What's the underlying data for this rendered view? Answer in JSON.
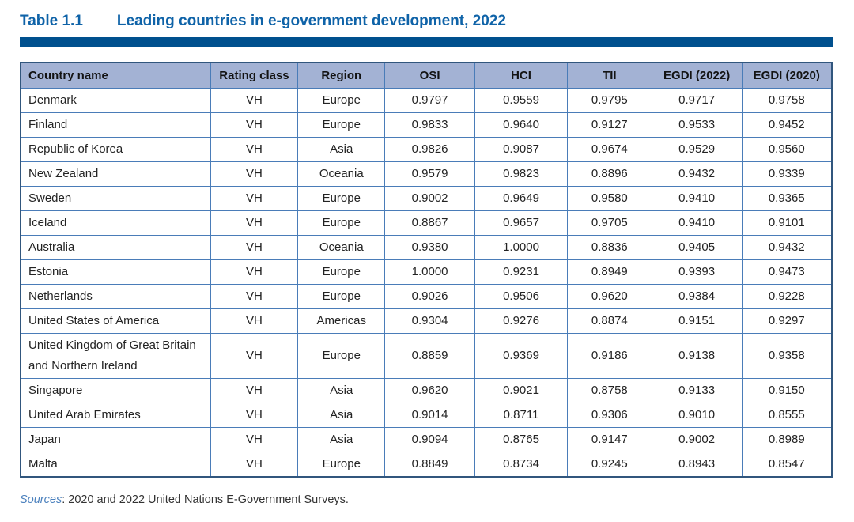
{
  "title": {
    "label": "Table 1.1",
    "text": "Leading countries in e-government development, 2022"
  },
  "table": {
    "columns": [
      "Country name",
      "Rating class",
      "Region",
      "OSI",
      "HCI",
      "TII",
      "EGDI (2022)",
      "EGDI (2020)"
    ],
    "column_keys": [
      "country",
      "rating",
      "region",
      "osi",
      "hci",
      "tii",
      "egdi2022",
      "egdi2020"
    ],
    "column_widths": [
      "23.4%",
      "10.8%",
      "10.7%",
      "11.1%",
      "11.4%",
      "10.4%",
      "11.1%",
      "11.1%"
    ],
    "rows": [
      {
        "country": "Denmark",
        "rating": "VH",
        "region": "Europe",
        "osi": "0.9797",
        "hci": "0.9559",
        "tii": "0.9795",
        "egdi2022": "0.9717",
        "egdi2020": "0.9758"
      },
      {
        "country": "Finland",
        "rating": "VH",
        "region": "Europe",
        "osi": "0.9833",
        "hci": "0.9640",
        "tii": "0.9127",
        "egdi2022": "0.9533",
        "egdi2020": "0.9452"
      },
      {
        "country": "Republic of Korea",
        "rating": "VH",
        "region": "Asia",
        "osi": "0.9826",
        "hci": "0.9087",
        "tii": "0.9674",
        "egdi2022": "0.9529",
        "egdi2020": "0.9560"
      },
      {
        "country": "New Zealand",
        "rating": "VH",
        "region": "Oceania",
        "osi": "0.9579",
        "hci": "0.9823",
        "tii": "0.8896",
        "egdi2022": "0.9432",
        "egdi2020": "0.9339"
      },
      {
        "country": "Sweden",
        "rating": "VH",
        "region": "Europe",
        "osi": "0.9002",
        "hci": "0.9649",
        "tii": "0.9580",
        "egdi2022": "0.9410",
        "egdi2020": "0.9365"
      },
      {
        "country": "Iceland",
        "rating": "VH",
        "region": "Europe",
        "osi": "0.8867",
        "hci": "0.9657",
        "tii": "0.9705",
        "egdi2022": "0.9410",
        "egdi2020": "0.9101"
      },
      {
        "country": "Australia",
        "rating": "VH",
        "region": "Oceania",
        "osi": "0.9380",
        "hci": "1.0000",
        "tii": "0.8836",
        "egdi2022": "0.9405",
        "egdi2020": "0.9432"
      },
      {
        "country": "Estonia",
        "rating": "VH",
        "region": "Europe",
        "osi": "1.0000",
        "hci": "0.9231",
        "tii": "0.8949",
        "egdi2022": "0.9393",
        "egdi2020": "0.9473"
      },
      {
        "country": "Netherlands",
        "rating": "VH",
        "region": "Europe",
        "osi": "0.9026",
        "hci": "0.9506",
        "tii": "0.9620",
        "egdi2022": "0.9384",
        "egdi2020": "0.9228"
      },
      {
        "country": "United States of America",
        "rating": "VH",
        "region": "Americas",
        "osi": "0.9304",
        "hci": "0.9276",
        "tii": "0.8874",
        "egdi2022": "0.9151",
        "egdi2020": "0.9297"
      },
      {
        "country": "United Kingdom of Great Britain and Northern Ireland",
        "rating": "VH",
        "region": "Europe",
        "osi": "0.8859",
        "hci": "0.9369",
        "tii": "0.9186",
        "egdi2022": "0.9138",
        "egdi2020": "0.9358"
      },
      {
        "country": "Singapore",
        "rating": "VH",
        "region": "Asia",
        "osi": "0.9620",
        "hci": "0.9021",
        "tii": "0.8758",
        "egdi2022": "0.9133",
        "egdi2020": "0.9150"
      },
      {
        "country": "United Arab Emirates",
        "rating": "VH",
        "region": "Asia",
        "osi": "0.9014",
        "hci": "0.8711",
        "tii": "0.9306",
        "egdi2022": "0.9010",
        "egdi2020": "0.8555"
      },
      {
        "country": "Japan",
        "rating": "VH",
        "region": "Asia",
        "osi": "0.9094",
        "hci": "0.8765",
        "tii": "0.9147",
        "egdi2022": "0.9002",
        "egdi2020": "0.8989"
      },
      {
        "country": "Malta",
        "rating": "VH",
        "region": "Europe",
        "osi": "0.8849",
        "hci": "0.8734",
        "tii": "0.9245",
        "egdi2022": "0.8943",
        "egdi2020": "0.8547"
      }
    ]
  },
  "footer": {
    "sources_label": "Sources",
    "sources_text": ": 2020 and 2022 United Nations E-Government Surveys."
  },
  "colors": {
    "title_blue": "#0F63A8",
    "bar_navy": "#00508E",
    "header_fill": "#A3B2D4",
    "inner_border": "#4A7CB8",
    "outer_border": "#31567D",
    "body_text": "#232323",
    "sources_blue": "#4D82BE"
  }
}
